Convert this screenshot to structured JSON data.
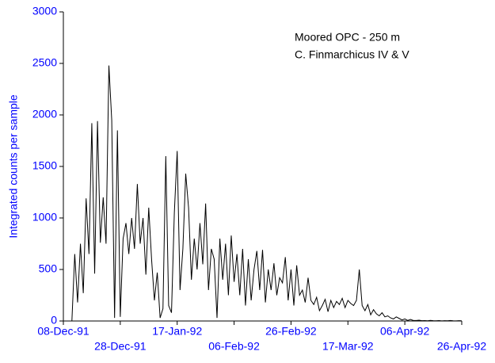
{
  "chart_data": {
    "type": "line",
    "ylabel": "Integrated counts per sample",
    "annotations": [
      "Moored OPC - 250 m",
      "C. Finmarchicus IV & V"
    ],
    "color": "#000000",
    "axis_label_color": "#0000ff",
    "xlim": [
      "1991-12-08",
      "1992-04-26"
    ],
    "xticks": [
      {
        "value": "1991-12-08",
        "label": "08-Dec-91"
      },
      {
        "value": "1991-12-28",
        "label": "28-Dec-91"
      },
      {
        "value": "1992-01-17",
        "label": "17-Jan-92"
      },
      {
        "value": "1992-02-06",
        "label": "06-Feb-92"
      },
      {
        "value": "1992-02-26",
        "label": "26-Feb-92"
      },
      {
        "value": "1992-03-17",
        "label": "17-Mar-92"
      },
      {
        "value": "1992-04-06",
        "label": "06-Apr-92"
      },
      {
        "value": "1992-04-26",
        "label": "26-Apr-92"
      }
    ],
    "ylim": [
      0,
      3000
    ],
    "yticks": [
      0,
      500,
      1000,
      1500,
      2000,
      2500,
      3000
    ],
    "grid": false,
    "x": [
      "1991-12-11",
      "1991-12-12",
      "1991-12-13",
      "1991-12-14",
      "1991-12-15",
      "1991-12-16",
      "1991-12-17",
      "1991-12-18",
      "1991-12-19",
      "1991-12-20",
      "1991-12-21",
      "1991-12-22",
      "1991-12-23",
      "1991-12-24",
      "1991-12-25",
      "1991-12-26",
      "1991-12-27",
      "1991-12-28",
      "1991-12-29",
      "1991-12-30",
      "1991-12-31",
      "1992-01-01",
      "1992-01-02",
      "1992-01-03",
      "1992-01-04",
      "1992-01-05",
      "1992-01-06",
      "1992-01-07",
      "1992-01-08",
      "1992-01-09",
      "1992-01-10",
      "1992-01-11",
      "1992-01-12",
      "1992-01-13",
      "1992-01-14",
      "1992-01-15",
      "1992-01-16",
      "1992-01-17",
      "1992-01-18",
      "1992-01-19",
      "1992-01-20",
      "1992-01-21",
      "1992-01-22",
      "1992-01-23",
      "1992-01-24",
      "1992-01-25",
      "1992-01-26",
      "1992-01-27",
      "1992-01-28",
      "1992-01-29",
      "1992-01-30",
      "1992-01-31",
      "1992-02-01",
      "1992-02-02",
      "1992-02-03",
      "1992-02-04",
      "1992-02-05",
      "1992-02-06",
      "1992-02-07",
      "1992-02-08",
      "1992-02-09",
      "1992-02-10",
      "1992-02-11",
      "1992-02-12",
      "1992-02-13",
      "1992-02-14",
      "1992-02-15",
      "1992-02-16",
      "1992-02-17",
      "1992-02-18",
      "1992-02-19",
      "1992-02-20",
      "1992-02-21",
      "1992-02-22",
      "1992-02-23",
      "1992-02-24",
      "1992-02-25",
      "1992-02-26",
      "1992-02-27",
      "1992-02-28",
      "1992-02-29",
      "1992-03-01",
      "1992-03-02",
      "1992-03-03",
      "1992-03-04",
      "1992-03-05",
      "1992-03-06",
      "1992-03-07",
      "1992-03-08",
      "1992-03-09",
      "1992-03-10",
      "1992-03-11",
      "1992-03-12",
      "1992-03-13",
      "1992-03-14",
      "1992-03-15",
      "1992-03-16",
      "1992-03-17",
      "1992-03-18",
      "1992-03-19",
      "1992-03-20",
      "1992-03-21",
      "1992-03-22",
      "1992-03-23",
      "1992-03-24",
      "1992-03-25",
      "1992-03-26",
      "1992-03-27",
      "1992-03-28",
      "1992-03-29",
      "1992-03-30",
      "1992-03-31",
      "1992-04-01",
      "1992-04-02",
      "1992-04-03",
      "1992-04-04",
      "1992-04-05",
      "1992-04-06",
      "1992-04-07",
      "1992-04-08",
      "1992-04-09",
      "1992-04-10",
      "1992-04-11",
      "1992-04-12",
      "1992-04-13",
      "1992-04-14",
      "1992-04-15",
      "1992-04-16",
      "1992-04-17",
      "1992-04-18",
      "1992-04-19",
      "1992-04-20",
      "1992-04-21",
      "1992-04-22",
      "1992-04-23",
      "1992-04-24",
      "1992-04-25",
      "1992-04-26"
    ],
    "values": [
      0,
      650,
      180,
      750,
      270,
      1190,
      650,
      1920,
      460,
      1940,
      760,
      1200,
      750,
      2480,
      1950,
      30,
      1850,
      40,
      800,
      950,
      650,
      1000,
      700,
      1330,
      750,
      1000,
      450,
      1100,
      600,
      200,
      470,
      30,
      120,
      1600,
      150,
      80,
      1050,
      1650,
      300,
      700,
      1430,
      1100,
      400,
      800,
      500,
      950,
      550,
      1140,
      300,
      700,
      600,
      30,
      800,
      400,
      750,
      250,
      830,
      380,
      650,
      250,
      700,
      150,
      600,
      200,
      500,
      680,
      300,
      690,
      180,
      500,
      300,
      560,
      250,
      420,
      370,
      620,
      200,
      500,
      150,
      540,
      250,
      300,
      180,
      420,
      200,
      160,
      230,
      100,
      150,
      210,
      90,
      200,
      130,
      190,
      160,
      220,
      130,
      200,
      170,
      150,
      200,
      500,
      150,
      100,
      160,
      60,
      110,
      70,
      50,
      80,
      40,
      50,
      30,
      20,
      40,
      25,
      10,
      20,
      5,
      15,
      5,
      5,
      8,
      3,
      4,
      2,
      6,
      3,
      2,
      4,
      1,
      3,
      2,
      5,
      2,
      1,
      3,
      2
    ]
  }
}
